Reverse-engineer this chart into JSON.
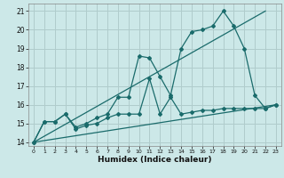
{
  "xlabel": "Humidex (Indice chaleur)",
  "bg_color": "#cce8e8",
  "grid_color": "#b0cccc",
  "line_color": "#1a6b6b",
  "xlim": [
    -0.5,
    23.5
  ],
  "ylim": [
    13.8,
    21.4
  ],
  "xticks": [
    0,
    1,
    2,
    3,
    4,
    5,
    6,
    7,
    8,
    9,
    10,
    11,
    12,
    13,
    14,
    15,
    16,
    17,
    18,
    19,
    20,
    21,
    22,
    23
  ],
  "yticks": [
    14,
    15,
    16,
    17,
    18,
    19,
    20,
    21
  ],
  "line1_x": [
    0,
    1,
    2,
    3,
    4,
    5,
    6,
    7,
    8,
    9,
    10,
    11,
    12,
    13,
    14,
    15,
    16,
    17,
    18,
    19,
    20,
    21,
    22,
    23
  ],
  "line1_y": [
    14.0,
    15.1,
    15.1,
    15.5,
    14.8,
    15.0,
    15.3,
    15.5,
    16.4,
    16.4,
    18.6,
    18.5,
    17.5,
    16.5,
    19.0,
    19.9,
    20.0,
    20.2,
    21.0,
    20.2,
    19.0,
    16.5,
    15.8,
    16.0
  ],
  "line2_x": [
    0,
    1,
    2,
    3,
    4,
    5,
    6,
    7,
    8,
    9,
    10,
    11,
    12,
    13,
    14,
    15,
    16,
    17,
    18,
    19,
    20,
    21,
    22,
    23
  ],
  "line2_y": [
    14.0,
    15.1,
    15.1,
    15.5,
    14.7,
    14.9,
    15.0,
    15.3,
    15.5,
    15.5,
    15.5,
    17.4,
    15.5,
    16.4,
    15.5,
    15.6,
    15.7,
    15.7,
    15.8,
    15.8,
    15.8,
    15.8,
    15.8,
    16.0
  ],
  "line3_x": [
    0,
    22
  ],
  "line3_y": [
    14.0,
    21.0
  ],
  "line4_x": [
    0,
    23
  ],
  "line4_y": [
    14.0,
    16.0
  ]
}
